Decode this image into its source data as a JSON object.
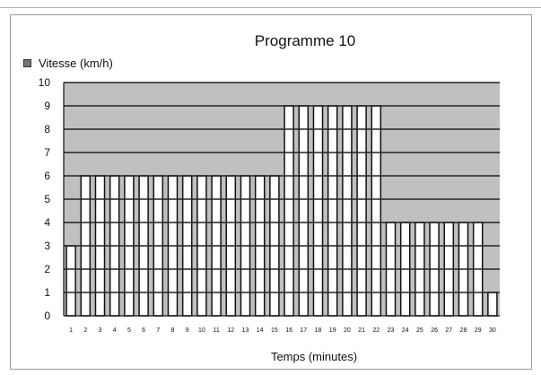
{
  "chart_data": {
    "type": "bar",
    "title": "Programme 10",
    "xlabel": "Temps (minutes)",
    "ylabel": "",
    "series": [
      {
        "name": "Vitesse (km/h)",
        "values": [
          3,
          6,
          6,
          6,
          6,
          6,
          6,
          6,
          6,
          6,
          6,
          6,
          6,
          6,
          6,
          9,
          9,
          9,
          9,
          9,
          9,
          9,
          4,
          4,
          4,
          4,
          4,
          4,
          4,
          1
        ]
      }
    ],
    "categories": [
      "1",
      "2",
      "3",
      "4",
      "5",
      "6",
      "7",
      "8",
      "9",
      "10",
      "11",
      "12",
      "13",
      "14",
      "15",
      "16",
      "17",
      "18",
      "19",
      "20",
      "21",
      "22",
      "23",
      "24",
      "25",
      "26",
      "27",
      "28",
      "29",
      "30"
    ],
    "ylim": [
      0,
      10
    ],
    "yticks": [
      0,
      1,
      2,
      3,
      4,
      5,
      6,
      7,
      8,
      9,
      10
    ],
    "grid": true,
    "legend_position": "top-left",
    "colors": {
      "plot_background": "#c0c0c0",
      "bar_fill": "#ffffff",
      "bar_stroke": "#111111",
      "gridline": "#222222"
    }
  }
}
